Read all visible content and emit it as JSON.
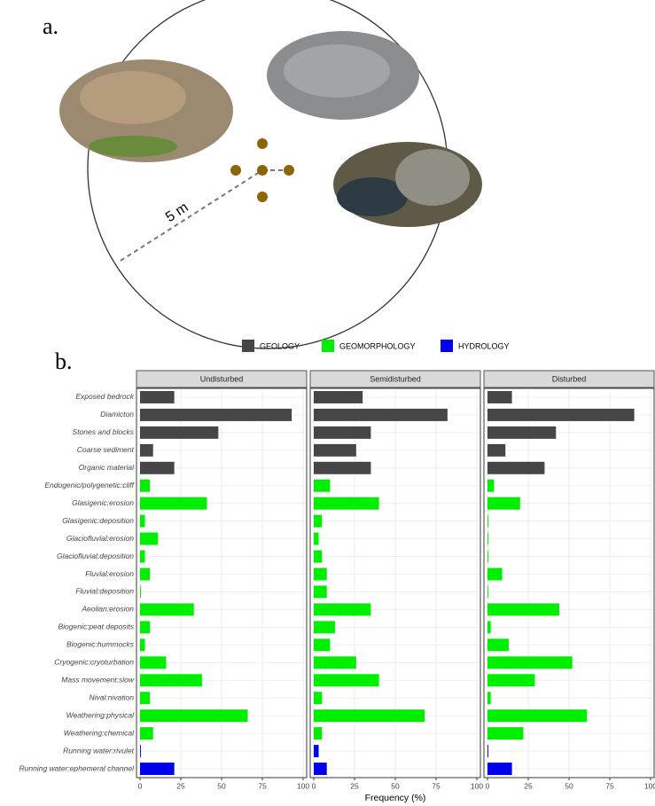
{
  "panel_labels": [
    "a.",
    "b."
  ],
  "figure_a": {
    "scale_label": "5 m"
  },
  "chart_data": {
    "type": "bar",
    "orientation": "horizontal",
    "xlabel": "Frequency (%)",
    "xlim": [
      0,
      100
    ],
    "xticks": [
      0,
      25,
      50,
      75,
      100
    ],
    "grid": true,
    "legend": "top",
    "panels": [
      "Undisturbed",
      "Semidisturbed",
      "Disturbed"
    ],
    "categories": [
      "Exposed bedrock",
      "Diamicton",
      "Stones and blocks",
      "Coarse sediment",
      "Organic material",
      "Endogenic/polygenetic:cliff",
      "Glasigenic:erosion",
      "Glasigenic:deposition",
      "Glaciofluvial:erosion",
      "Glaciofluvial:deposition",
      "Fluvial:erosion",
      "Fluvial:deposition",
      "Aeolian:erosion",
      "Biogenic:peat deposits",
      "Biogenic:hummocks",
      "Cryogenic:cryoturbation",
      "Mass movement:slow",
      "Nival:nivation",
      "Weathering:physical",
      "Weathering:chemical",
      "Running water:rivulet",
      "Running water:ephemeral channel"
    ],
    "series": [
      {
        "name": "GEOLOGY",
        "color": "#464646",
        "values": [
          [
            21,
            93,
            48,
            8,
            21,
            null,
            null,
            null,
            null,
            null,
            null,
            null,
            null,
            null,
            null,
            null,
            null,
            null,
            null,
            null,
            null,
            null
          ],
          [
            30,
            82,
            35,
            26,
            35,
            null,
            null,
            null,
            null,
            null,
            null,
            null,
            null,
            null,
            null,
            null,
            null,
            null,
            null,
            null,
            null,
            null
          ],
          [
            15,
            90,
            42,
            11,
            35,
            null,
            null,
            null,
            null,
            null,
            null,
            null,
            null,
            null,
            null,
            null,
            null,
            null,
            null,
            null,
            null,
            null
          ]
        ]
      },
      {
        "name": "GEOMORPHOLOGY",
        "color": "#00ee00",
        "values": [
          [
            null,
            null,
            null,
            null,
            null,
            6,
            41,
            3,
            11,
            3,
            6,
            0.5,
            33,
            6,
            3,
            16,
            38,
            6,
            66,
            8,
            null,
            null
          ],
          [
            null,
            null,
            null,
            null,
            null,
            10,
            40,
            5,
            3,
            5,
            8,
            8,
            35,
            13,
            10,
            26,
            40,
            5,
            68,
            5,
            null,
            null
          ],
          [
            null,
            null,
            null,
            null,
            null,
            4,
            20,
            0.5,
            0.5,
            0.5,
            9,
            0.5,
            44,
            2,
            13,
            52,
            29,
            2,
            61,
            22,
            null,
            null
          ]
        ]
      },
      {
        "name": "HYDROLOGY",
        "color": "#0000ee",
        "values": [
          [
            null,
            null,
            null,
            null,
            null,
            null,
            null,
            null,
            null,
            null,
            null,
            null,
            null,
            null,
            null,
            null,
            null,
            null,
            null,
            null,
            0.5,
            21
          ],
          [
            null,
            null,
            null,
            null,
            null,
            null,
            null,
            null,
            null,
            null,
            null,
            null,
            null,
            null,
            null,
            null,
            null,
            null,
            null,
            null,
            3,
            8
          ],
          [
            null,
            null,
            null,
            null,
            null,
            null,
            null,
            null,
            null,
            null,
            null,
            null,
            null,
            null,
            null,
            null,
            null,
            null,
            null,
            null,
            0.5,
            15
          ]
        ]
      }
    ]
  }
}
